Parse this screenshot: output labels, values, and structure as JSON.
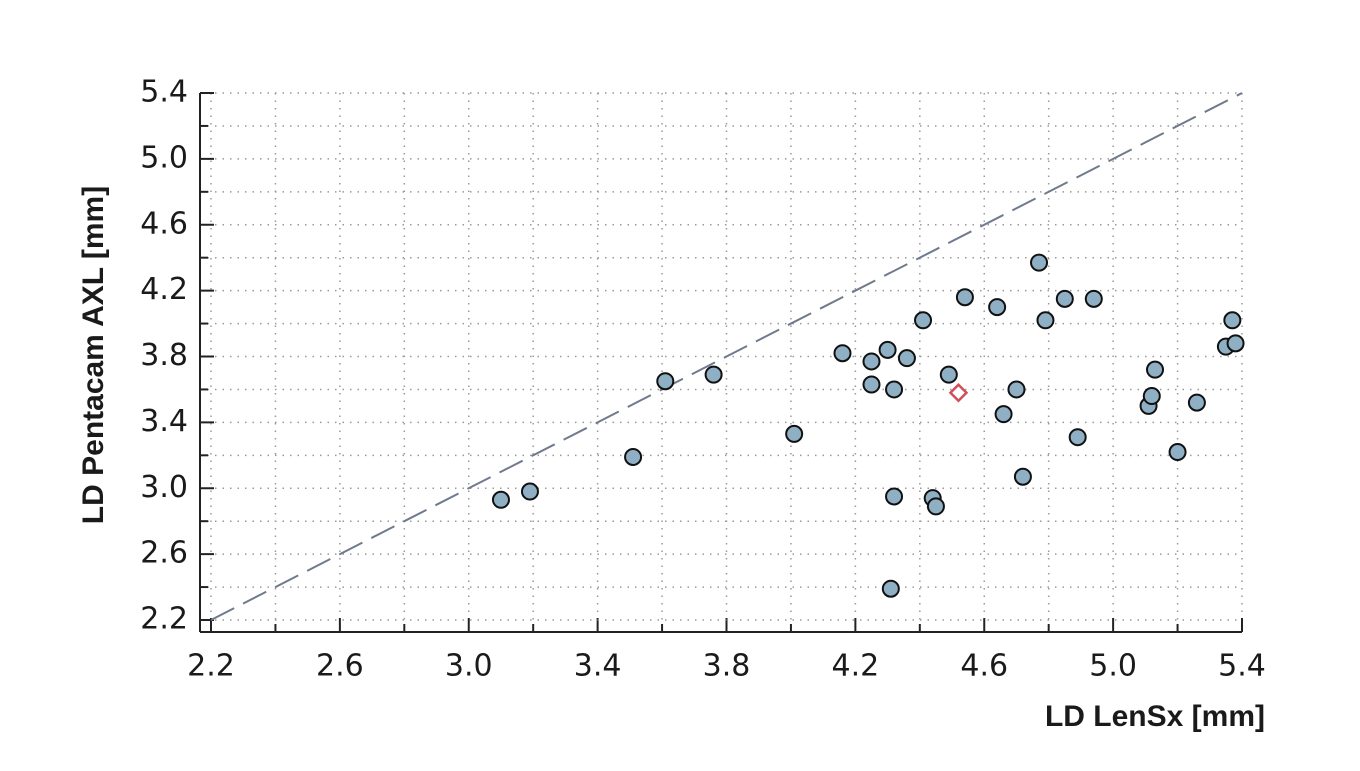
{
  "chart_data": {
    "type": "scatter",
    "x_label": "LD LenSx [mm]",
    "y_label": "LD Pentacam AXL [mm]",
    "xlim": [
      2.2,
      5.4
    ],
    "ylim": [
      2.2,
      5.4
    ],
    "xticks": [
      2.2,
      2.6,
      {
        "value": 3.0,
        "label": "3.0"
      },
      3.4,
      3.8,
      4.2,
      4.6,
      {
        "value": 5.0,
        "label": "5.0"
      },
      5.4
    ],
    "yticks": [
      2.2,
      2.6,
      {
        "value": 3.0,
        "label": "3.0"
      },
      3.4,
      3.8,
      4.2,
      4.6,
      {
        "value": 5.0,
        "label": "5.0"
      },
      5.4
    ],
    "xminorticks": [
      2.4,
      2.8,
      3.2,
      3.6,
      4.0,
      4.4,
      4.8,
      5.2
    ],
    "yminorticks": [
      2.4,
      2.8,
      3.2,
      3.6,
      4.0,
      4.4,
      4.8,
      5.2
    ],
    "grid": true,
    "identity_line": true,
    "series": [
      {
        "color": "#8fb0c4",
        "marker": "circle",
        "x": [
          3.1,
          3.19,
          3.51,
          3.61,
          3.76,
          4.01,
          4.16,
          4.25,
          4.25,
          4.3,
          4.32,
          4.36,
          4.41,
          4.49,
          4.32,
          4.44,
          4.45,
          4.31,
          4.54,
          4.64,
          4.66,
          4.7,
          4.72,
          4.77,
          4.79,
          4.85,
          4.89,
          4.94,
          5.11,
          5.12,
          5.13,
          5.2,
          5.26,
          5.35,
          5.37,
          5.38
        ],
        "values": [
          2.93,
          2.98,
          3.19,
          3.65,
          3.69,
          3.33,
          3.82,
          3.77,
          3.63,
          3.84,
          3.6,
          3.79,
          4.02,
          3.69,
          2.95,
          2.94,
          2.89,
          2.39,
          4.16,
          4.1,
          3.45,
          3.6,
          3.07,
          4.37,
          4.02,
          4.15,
          3.31,
          4.15,
          3.5,
          3.56,
          3.72,
          3.22,
          3.52,
          3.86,
          4.02,
          3.88
        ]
      },
      {
        "color": "#d0505a",
        "marker": "diamond",
        "x": [
          4.52
        ],
        "values": [
          3.58
        ]
      }
    ]
  }
}
